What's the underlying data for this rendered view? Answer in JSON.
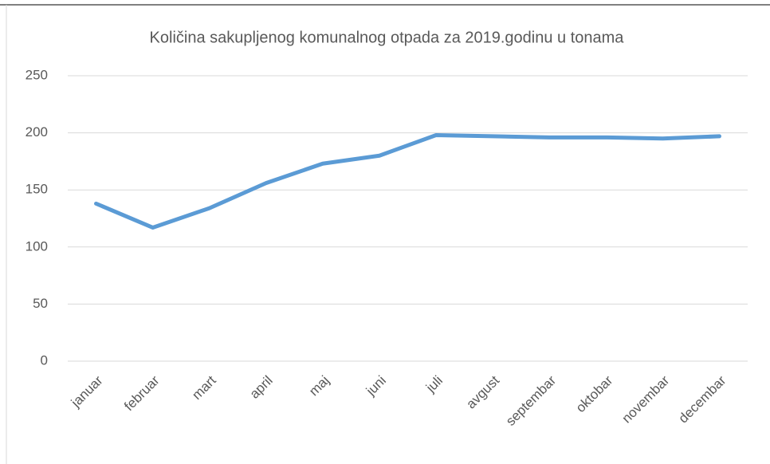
{
  "chart_data": {
    "type": "line",
    "title": "Količina sakupljenog  komunalnog otpada za 2019.godinu u tonama",
    "categories": [
      "januar",
      "februar",
      "mart",
      "april",
      "maj",
      "juni",
      "juli",
      "avgust",
      "septembar",
      "oktobar",
      "novembar",
      "decembar"
    ],
    "series": [
      {
        "name": "Količina",
        "color": "#5b9bd5",
        "values": [
          138,
          117,
          134,
          156,
          173,
          180,
          198,
          197,
          196,
          196,
          195,
          197
        ]
      }
    ],
    "ylim": [
      0,
      250
    ],
    "yticks": [
      0,
      50,
      100,
      150,
      200,
      250
    ],
    "grid": true
  }
}
